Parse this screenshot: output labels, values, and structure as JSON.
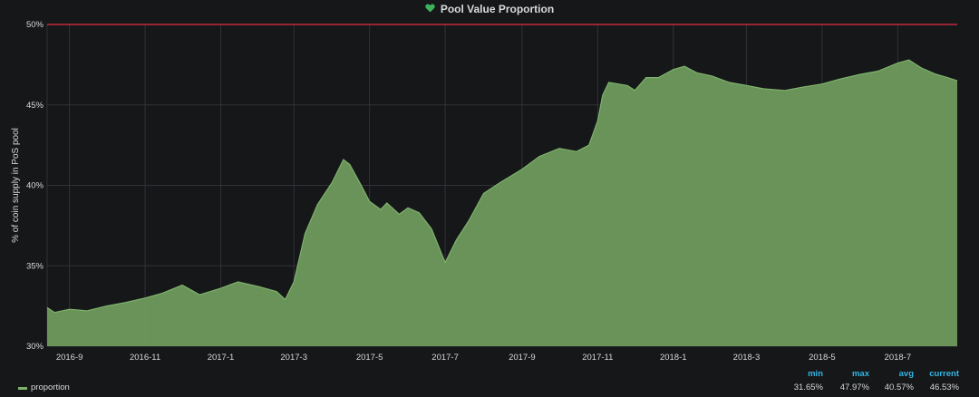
{
  "panel": {
    "title": "Pool Value Proportion",
    "icon": "heart-icon",
    "icon_color": "#3eb15b"
  },
  "colors": {
    "background": "#161719",
    "grid": "#303236",
    "series": "#7eb26d",
    "series_fill": "#6e9a5c",
    "threshold": "#e02f44",
    "legend_header": "#33b5e5",
    "text": "#d8d9da"
  },
  "chart_data": {
    "type": "area",
    "ylabel": "% of coin supply in PoS pool",
    "xlabel": "",
    "ylim": [
      30,
      50
    ],
    "yticks": [
      "30%",
      "35%",
      "40%",
      "45%",
      "50%"
    ],
    "yticks_values": [
      30,
      35,
      40,
      45,
      50
    ],
    "xticks": [
      "2016-9",
      "2016-11",
      "2017-1",
      "2017-3",
      "2017-5",
      "2017-7",
      "2017-9",
      "2017-11",
      "2018-1",
      "2018-3",
      "2018-5",
      "2018-7"
    ],
    "xticks_dates": [
      "2016-09-01",
      "2016-11-01",
      "2017-01-01",
      "2017-03-01",
      "2017-05-01",
      "2017-07-01",
      "2017-09-01",
      "2017-11-01",
      "2018-01-01",
      "2018-03-01",
      "2018-05-01",
      "2018-07-01"
    ],
    "x_range": [
      "2016-08-14",
      "2018-08-18"
    ],
    "grid": true,
    "threshold": 50,
    "series": [
      {
        "name": "proportion",
        "points": [
          [
            "2016-08-14",
            32.4
          ],
          [
            "2016-08-20",
            32.1
          ],
          [
            "2016-09-01",
            32.3
          ],
          [
            "2016-09-15",
            32.2
          ],
          [
            "2016-10-01",
            32.5
          ],
          [
            "2016-10-15",
            32.7
          ],
          [
            "2016-11-01",
            33.0
          ],
          [
            "2016-11-15",
            33.3
          ],
          [
            "2016-12-01",
            33.8
          ],
          [
            "2016-12-15",
            33.2
          ],
          [
            "2017-01-01",
            33.6
          ],
          [
            "2017-01-15",
            34.0
          ],
          [
            "2017-02-01",
            33.7
          ],
          [
            "2017-02-15",
            33.4
          ],
          [
            "2017-02-22",
            32.9
          ],
          [
            "2017-03-01",
            34.0
          ],
          [
            "2017-03-10",
            37.0
          ],
          [
            "2017-03-20",
            38.8
          ],
          [
            "2017-04-01",
            40.2
          ],
          [
            "2017-04-10",
            41.6
          ],
          [
            "2017-04-15",
            41.3
          ],
          [
            "2017-04-25",
            39.9
          ],
          [
            "2017-05-01",
            39.0
          ],
          [
            "2017-05-10",
            38.5
          ],
          [
            "2017-05-15",
            38.9
          ],
          [
            "2017-05-25",
            38.2
          ],
          [
            "2017-06-01",
            38.6
          ],
          [
            "2017-06-10",
            38.3
          ],
          [
            "2017-06-20",
            37.3
          ],
          [
            "2017-07-01",
            35.2
          ],
          [
            "2017-07-10",
            36.6
          ],
          [
            "2017-07-20",
            37.8
          ],
          [
            "2017-08-01",
            39.5
          ],
          [
            "2017-08-15",
            40.2
          ],
          [
            "2017-09-01",
            41.0
          ],
          [
            "2017-09-15",
            41.8
          ],
          [
            "2017-10-01",
            42.3
          ],
          [
            "2017-10-15",
            42.1
          ],
          [
            "2017-10-25",
            42.5
          ],
          [
            "2017-11-01",
            44.0
          ],
          [
            "2017-11-05",
            45.6
          ],
          [
            "2017-11-10",
            46.4
          ],
          [
            "2017-11-25",
            46.2
          ],
          [
            "2017-12-01",
            45.9
          ],
          [
            "2017-12-10",
            46.7
          ],
          [
            "2017-12-20",
            46.7
          ],
          [
            "2018-01-01",
            47.2
          ],
          [
            "2018-01-10",
            47.4
          ],
          [
            "2018-01-20",
            47.0
          ],
          [
            "2018-02-01",
            46.8
          ],
          [
            "2018-02-15",
            46.4
          ],
          [
            "2018-03-01",
            46.2
          ],
          [
            "2018-03-15",
            46.0
          ],
          [
            "2018-04-01",
            45.9
          ],
          [
            "2018-04-15",
            46.1
          ],
          [
            "2018-05-01",
            46.3
          ],
          [
            "2018-05-15",
            46.6
          ],
          [
            "2018-06-01",
            46.9
          ],
          [
            "2018-06-15",
            47.1
          ],
          [
            "2018-07-01",
            47.6
          ],
          [
            "2018-07-10",
            47.8
          ],
          [
            "2018-07-20",
            47.3
          ],
          [
            "2018-08-01",
            46.9
          ],
          [
            "2018-08-10",
            46.7
          ],
          [
            "2018-08-18",
            46.5
          ]
        ]
      }
    ]
  },
  "legend": {
    "series_name": "proportion",
    "headers": {
      "min": "min",
      "max": "max",
      "avg": "avg",
      "current": "current"
    },
    "values": {
      "min": "31.65%",
      "max": "47.97%",
      "avg": "40.57%",
      "current": "46.53%"
    }
  }
}
